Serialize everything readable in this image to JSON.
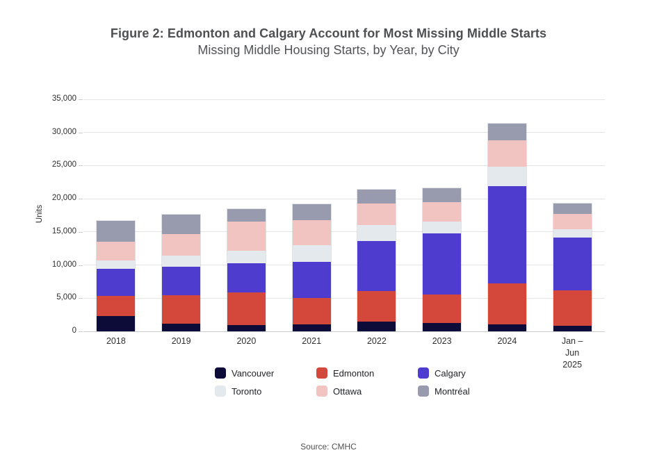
{
  "header": {
    "title": "Figure 2: Edmonton and Calgary Account for Most Missing Middle Starts",
    "subtitle": "Missing Middle Housing Starts, by Year, by City"
  },
  "footer": {
    "source": "Source: CMHC"
  },
  "chart_data": {
    "type": "bar",
    "stacked": true,
    "title": "Missing Middle Housing Starts, by Year, by City",
    "xlabel": "",
    "ylabel": "Units",
    "ylim": [
      0,
      35000
    ],
    "yticks": [
      0,
      5000,
      10000,
      15000,
      20000,
      25000,
      30000,
      35000
    ],
    "ytick_labels": [
      "0",
      "5,000",
      "10,000",
      "15,000",
      "20,000",
      "25,000",
      "30,000",
      "35,000"
    ],
    "grid": true,
    "legend_position": "bottom",
    "categories": [
      "2018",
      "2019",
      "2020",
      "2021",
      "2022",
      "2023",
      "2024",
      "Jan –\nJun\n2025"
    ],
    "series": [
      {
        "name": "Vancouver",
        "color": "#0d0c38",
        "values": [
          2300,
          1200,
          900,
          1000,
          1500,
          1300,
          1000,
          800
        ]
      },
      {
        "name": "Edmonton",
        "color": "#d3483a",
        "values": [
          3000,
          4200,
          5000,
          4000,
          4600,
          4300,
          6200,
          5400
        ]
      },
      {
        "name": "Calgary",
        "color": "#4e3cce",
        "values": [
          4100,
          4400,
          4400,
          5500,
          7500,
          9200,
          14700,
          7900
        ]
      },
      {
        "name": "Toronto",
        "color": "#e4e9ed",
        "values": [
          1300,
          1600,
          1900,
          2500,
          2400,
          1800,
          2900,
          1300
        ]
      },
      {
        "name": "Ottawa",
        "color": "#f2c4c1",
        "values": [
          2800,
          3300,
          4400,
          3800,
          3300,
          2900,
          4000,
          2300
        ]
      },
      {
        "name": "Montréal",
        "color": "#989aae",
        "values": [
          3200,
          2900,
          1900,
          2400,
          2100,
          2100,
          2500,
          1600
        ]
      }
    ],
    "totals": [
      16700,
      17600,
      18500,
      19200,
      21400,
      21600,
      31300,
      19300
    ]
  }
}
